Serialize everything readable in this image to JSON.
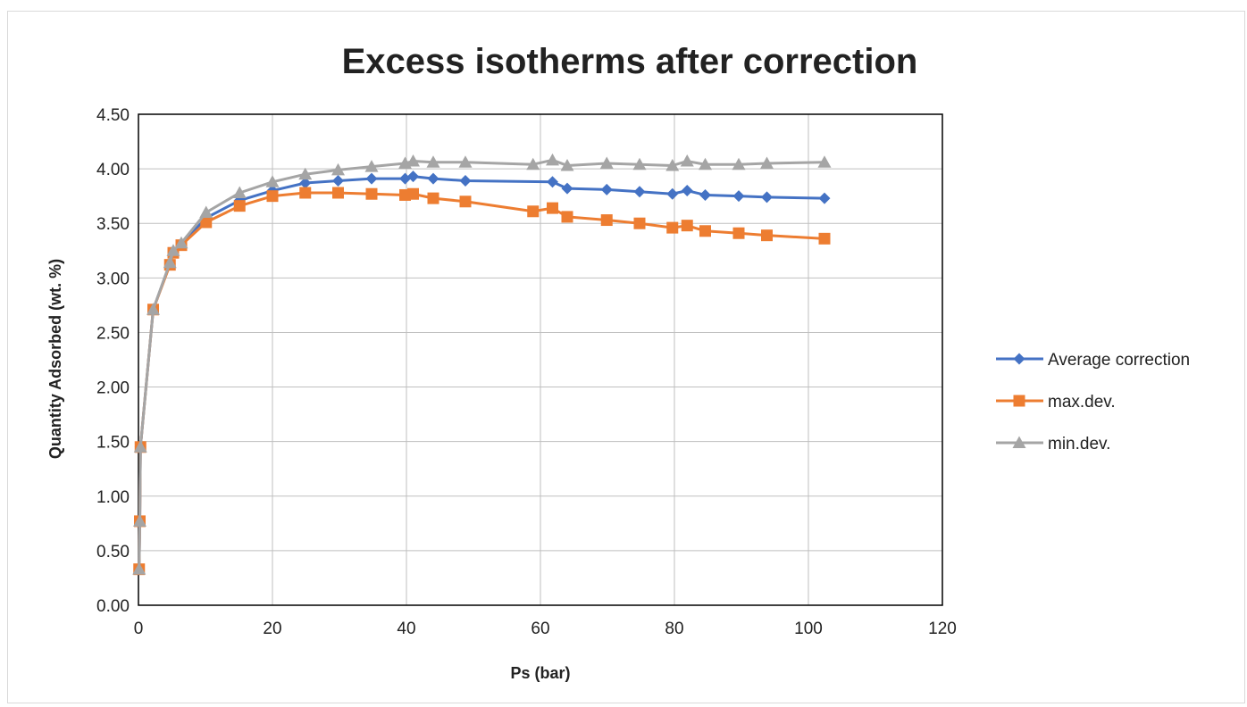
{
  "chart_data": {
    "type": "scatter",
    "title": "Excess isotherms after correction",
    "xlabel": "Ps (bar)",
    "ylabel": "Quantity Adsorbed (wt. %)",
    "xlim": [
      0,
      120
    ],
    "ylim": [
      0,
      4.5
    ],
    "x_ticks": [
      "0",
      "20",
      "40",
      "60",
      "80",
      "100",
      "120"
    ],
    "y_ticks": [
      "0.00",
      "0.50",
      "1.00",
      "1.50",
      "2.00",
      "2.50",
      "3.00",
      "3.50",
      "4.00",
      "4.50"
    ],
    "grid": true,
    "legend_position": "right",
    "series": [
      {
        "name": "Average correction",
        "color": "#4472C4",
        "marker": "diamond",
        "x": [
          0.1,
          0.2,
          0.3,
          2.2,
          4.7,
          5.2,
          6.4,
          10.1,
          15.1,
          20.0,
          24.9,
          29.8,
          34.8,
          39.8,
          41.0,
          44.0,
          48.8,
          61.8,
          64.0,
          69.9,
          74.8,
          79.7,
          81.9,
          84.6,
          89.6,
          93.8,
          102.4
        ],
        "y": [
          0.33,
          0.77,
          1.45,
          2.71,
          3.13,
          3.24,
          3.31,
          3.55,
          3.71,
          3.8,
          3.87,
          3.89,
          3.91,
          3.91,
          3.93,
          3.91,
          3.89,
          3.88,
          3.82,
          3.81,
          3.79,
          3.77,
          3.8,
          3.76,
          3.75,
          3.74,
          3.73
        ]
      },
      {
        "name": "max.dev.",
        "color": "#ED7D31",
        "marker": "square",
        "x": [
          0.1,
          0.2,
          0.3,
          2.2,
          4.7,
          5.2,
          6.4,
          10.1,
          15.1,
          20.0,
          24.9,
          29.8,
          34.8,
          39.8,
          41.0,
          44.0,
          48.8,
          58.9,
          61.8,
          64.0,
          69.9,
          74.8,
          79.7,
          81.9,
          84.6,
          89.6,
          93.8,
          102.4
        ],
        "y": [
          0.33,
          0.77,
          1.45,
          2.71,
          3.12,
          3.23,
          3.3,
          3.51,
          3.66,
          3.75,
          3.78,
          3.78,
          3.77,
          3.76,
          3.77,
          3.73,
          3.7,
          3.61,
          3.64,
          3.56,
          3.53,
          3.5,
          3.46,
          3.48,
          3.43,
          3.41,
          3.39,
          3.36
        ]
      },
      {
        "name": "min.dev.",
        "color": "#A5A5A5",
        "marker": "triangle",
        "x": [
          0.1,
          0.2,
          0.3,
          2.2,
          4.7,
          5.2,
          6.4,
          10.1,
          15.1,
          20.0,
          24.9,
          29.8,
          34.8,
          39.8,
          41.0,
          44.0,
          48.8,
          58.9,
          61.8,
          64.0,
          69.9,
          74.8,
          79.7,
          81.9,
          84.6,
          89.6,
          93.8,
          102.4
        ],
        "y": [
          0.33,
          0.77,
          1.45,
          2.71,
          3.14,
          3.25,
          3.32,
          3.6,
          3.78,
          3.88,
          3.95,
          3.99,
          4.02,
          4.05,
          4.07,
          4.06,
          4.06,
          4.04,
          4.08,
          4.03,
          4.05,
          4.04,
          4.03,
          4.07,
          4.04,
          4.04,
          4.05,
          4.06
        ]
      }
    ]
  }
}
